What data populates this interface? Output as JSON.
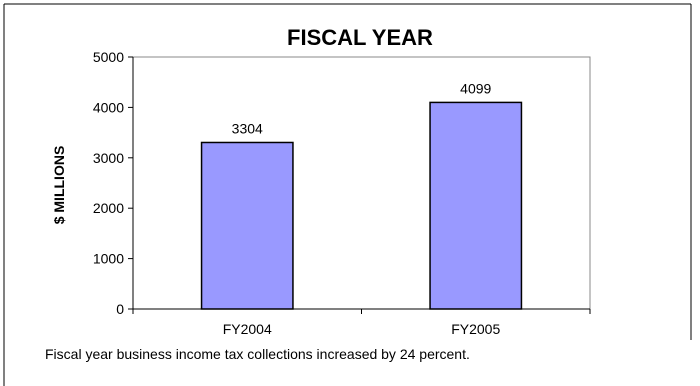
{
  "chart_data": {
    "type": "bar",
    "title": "FISCAL YEAR",
    "ylabel": "$ MILLIONS",
    "xlabel": "",
    "categories": [
      "FY2004",
      "FY2005"
    ],
    "values": [
      3304,
      4099
    ],
    "ylim": [
      0,
      5000
    ],
    "yticks": [
      0,
      1000,
      2000,
      3000,
      4000,
      5000
    ],
    "grid": false,
    "legend": "none",
    "bar_color": "#9999ff",
    "bar_edge_color": "#000000"
  },
  "caption": "Fiscal year business income tax collections increased by 24 percent."
}
